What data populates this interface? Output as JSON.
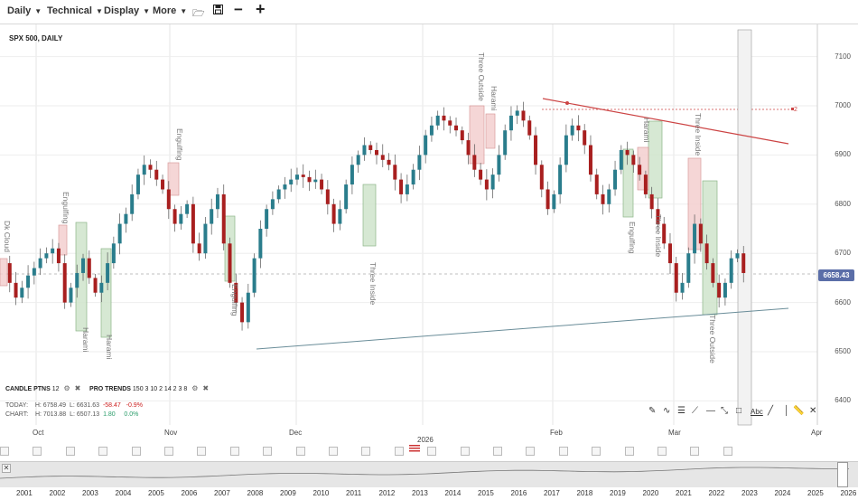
{
  "toolbar": {
    "interval": "Daily",
    "technical": "Technical",
    "display": "Display",
    "more": "More",
    "open_icon": "folder-open-icon",
    "save_icon": "save-icon",
    "zoom_out": "−",
    "zoom_in": "+"
  },
  "chart": {
    "title": "SPX 500, DAILY",
    "last_price": "6658.43",
    "price_labels": [
      "7100",
      "7000",
      "6900",
      "6800",
      "6700",
      "6600",
      "6500",
      "6400"
    ],
    "month_labels": [
      "Oct",
      "Nov",
      "Dec",
      "2026",
      "Feb",
      "Mar",
      "Apr"
    ],
    "alert_marker": "2",
    "pattern_labels": [
      "Dk Cloud",
      "Engulfing",
      "Harami",
      "Harami",
      "Engulfing",
      "Engulfing",
      "Three Inside",
      "Three Outside",
      "Harami",
      "Harami",
      "Three Inside",
      "Engulfing",
      "Three Inside",
      "Three Outside"
    ],
    "colors": {
      "up": "#2a7d8c",
      "down": "#a81f1f",
      "trend_upper": "#c44",
      "trend_lower": "#6a8d99",
      "highlight_green": "#cfe5cc",
      "highlight_red": "#f4cfcf",
      "price_box": "#5b6ea8"
    }
  },
  "studies": {
    "candle_label": "CANDLE PTNS",
    "candle_param": "12",
    "trend_label": "PRO TRENDS",
    "trend_params": "150 3 10 2 14 2 3 8",
    "today_label": "TODAY:",
    "today_h": "H: 6758.49",
    "today_l": "L: 6631.63",
    "today_chg": "-58.47",
    "today_pct": "-0.9%",
    "chart_label": "CHART:",
    "chart_h": "H: 7013.88",
    "chart_l": "L: 6507.13",
    "chart_chg": "1.80",
    "chart_pct": "0.0%"
  },
  "navigator": {
    "years": [
      "2001",
      "2002",
      "2003",
      "2004",
      "2005",
      "2006",
      "2007",
      "2008",
      "2009",
      "2010",
      "2011",
      "2012",
      "2013",
      "2014",
      "2015",
      "2016",
      "2017",
      "2018",
      "2019",
      "2020",
      "2021",
      "2022",
      "2023",
      "2024",
      "2025",
      "2026"
    ]
  },
  "draw_tools": {
    "text_tool": "Abc"
  }
}
